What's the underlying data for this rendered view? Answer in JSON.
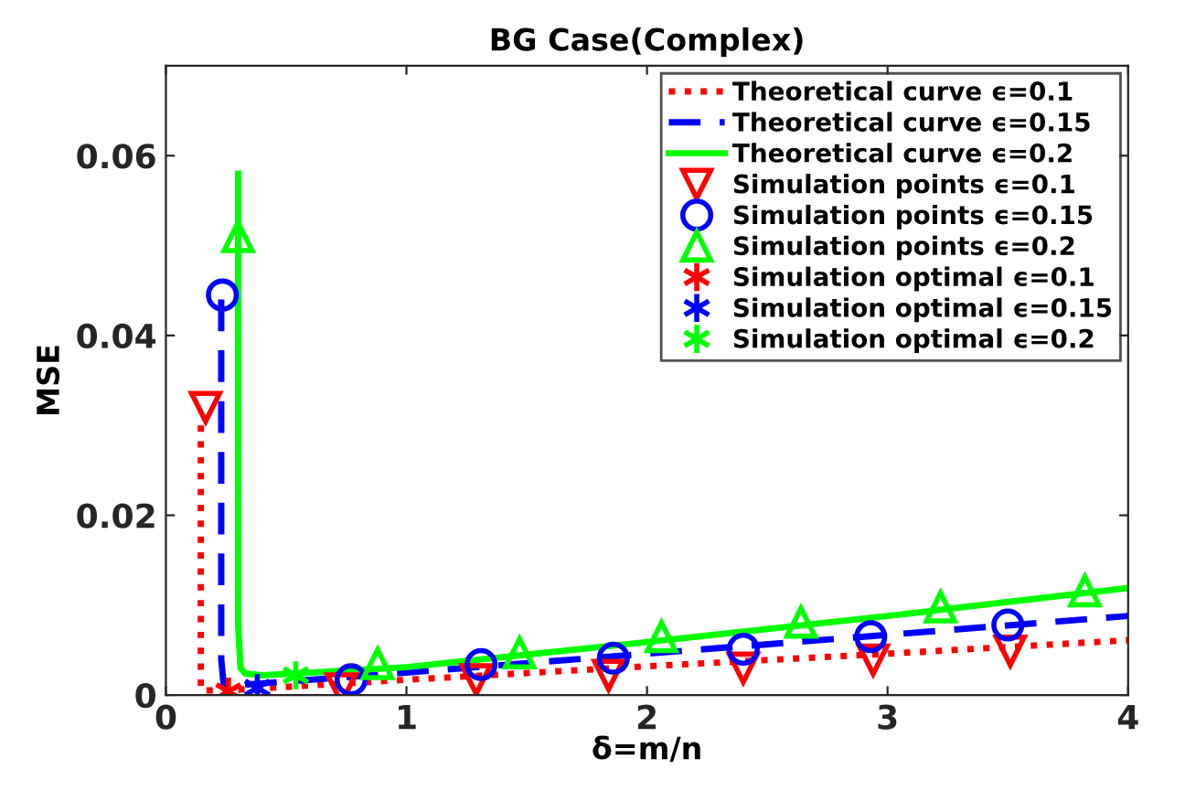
{
  "chart_data": {
    "type": "line",
    "title": "BG Case(Complex)",
    "xlabel": "δ=m/n",
    "ylabel": "MSE",
    "xlim": [
      0,
      4
    ],
    "ylim": [
      0,
      0.07
    ],
    "xticks": [
      0,
      1,
      2,
      3,
      4
    ],
    "yticks": [
      0,
      0.02,
      0.04,
      0.06
    ],
    "grid": false,
    "legend": "top right",
    "series": [
      {
        "name": "Theoretical curve ϵ=0.1",
        "color": "#ff0000",
        "line_style": "dotted",
        "marker": "none",
        "x": [
          0.145,
          0.145,
          0.15,
          0.3,
          1,
          2,
          3,
          4
        ],
        "values": [
          0.03,
          0.001,
          0.0005,
          0.0006,
          0.0017,
          0.0032,
          0.0046,
          0.0061
        ]
      },
      {
        "name": "Theoretical curve ϵ=0.15",
        "color": "#0000ff",
        "line_style": "dashed",
        "marker": "none",
        "x": [
          0.23,
          0.23,
          0.24,
          0.3,
          1,
          2,
          3,
          4
        ],
        "values": [
          0.044,
          0.004,
          0.0012,
          0.0011,
          0.0025,
          0.0046,
          0.0067,
          0.0088
        ]
      },
      {
        "name": "Theoretical curve ϵ=0.2",
        "color": "#00ff00",
        "line_style": "solid",
        "marker": "none",
        "x": [
          0.3,
          0.3,
          0.31,
          0.33,
          0.4,
          1,
          2,
          3,
          4
        ],
        "values": [
          0.058,
          0.008,
          0.003,
          0.0024,
          0.0022,
          0.0031,
          0.0059,
          0.0088,
          0.0119
        ]
      },
      {
        "name": "Simulation points ϵ=0.1",
        "type": "scatter",
        "color": "#ff0000",
        "marker": "triangle_down",
        "x": [
          0.165,
          0.73,
          1.29,
          1.84,
          2.4,
          2.94,
          3.51
        ],
        "values": [
          0.032,
          0.0007,
          0.0017,
          0.0022,
          0.003,
          0.0039,
          0.0049
        ]
      },
      {
        "name": "Simulation points ϵ=0.15",
        "type": "scatter",
        "color": "#0000ff",
        "marker": "circle",
        "x": [
          0.235,
          0.77,
          1.31,
          1.86,
          2.4,
          2.93,
          3.5
        ],
        "values": [
          0.0445,
          0.0017,
          0.0034,
          0.0041,
          0.0051,
          0.0065,
          0.0078
        ]
      },
      {
        "name": "Simulation points ϵ=0.2",
        "type": "scatter",
        "color": "#00ff00",
        "marker": "triangle",
        "x": [
          0.3,
          0.88,
          1.47,
          2.06,
          2.64,
          3.22,
          3.82
        ],
        "values": [
          0.051,
          0.0035,
          0.0047,
          0.0065,
          0.0081,
          0.0098,
          0.0116
        ]
      },
      {
        "name": "Simulation optimal ϵ=0.1",
        "type": "scatter",
        "color": "#ff0000",
        "marker": "cross",
        "x": [
          0.26
        ],
        "values": [
          0.0004
        ]
      },
      {
        "name": "Simulation optimal ϵ=0.15",
        "type": "scatter",
        "color": "#0000ff",
        "marker": "cross",
        "x": [
          0.38
        ],
        "values": [
          0.0008
        ]
      },
      {
        "name": "Simulation optimal ϵ=0.2",
        "type": "scatter",
        "color": "#00ff00",
        "marker": "cross",
        "x": [
          0.54
        ],
        "values": [
          0.0022
        ]
      }
    ]
  }
}
